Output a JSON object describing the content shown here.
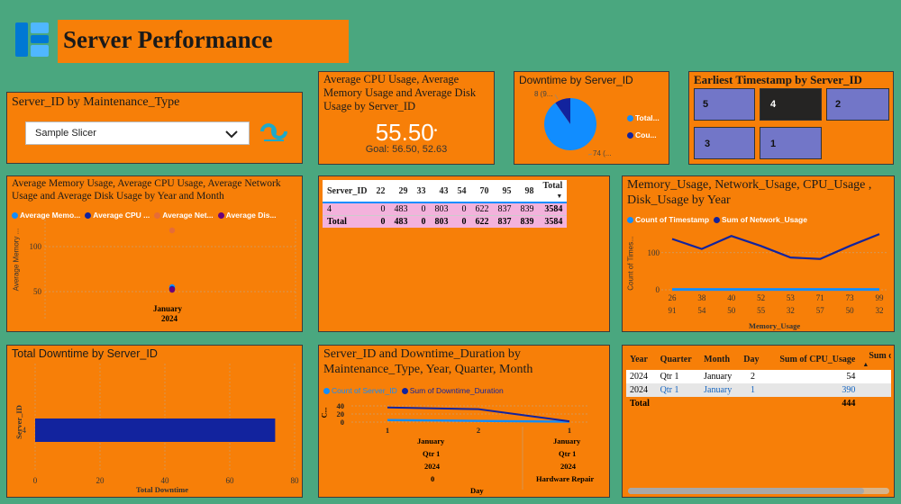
{
  "header": {
    "title": "Server Performance",
    "icon_name": "dashboard-grid-icon",
    "logo_name": "company-logo"
  },
  "slicer_panel": {
    "title": "Server_ID by Maintenance_Type",
    "dropdown_value": "Sample Slicer"
  },
  "kpi_card": {
    "title": "Average CPU Usage, Average Memory Usage and Average Disk Usage by Server_ID",
    "value": "55.50",
    "goal": "Goal: 56.50, 52.63"
  },
  "downtime_pie": {
    "title": "Downtime by Server_ID",
    "label_small": "8 (9...",
    "label_large": "74 (...",
    "legend": [
      "Total...",
      "Cou..."
    ],
    "colors": [
      "#118dff",
      "#12239e"
    ]
  },
  "earliest_ts": {
    "title": "Earliest Timestamp by Server_ID",
    "tiles": [
      "5",
      "4",
      "2",
      "3",
      "1"
    ]
  },
  "memory_cpu_chart": {
    "title": "Average Memory Usage, Average CPU Usage, Average Network Usage and Average Disk Usage by Year and Month",
    "legend": [
      "Average Memo...",
      "Average CPU ...",
      "Average Net...",
      "Average Dis..."
    ],
    "ylabel": "Average Memory ...",
    "xlabel_month": "January",
    "xlabel_year": "2024"
  },
  "matrix": {
    "headers": [
      "Server_ID",
      "22",
      "29",
      "33",
      "43",
      "54",
      "70",
      "95",
      "98",
      "Total"
    ],
    "rows": [
      [
        "4",
        "0",
        "483",
        "0",
        "803",
        "0",
        "622",
        "837",
        "839",
        "3584"
      ],
      [
        "Total",
        "0",
        "483",
        "0",
        "803",
        "0",
        "622",
        "837",
        "839",
        "3584"
      ]
    ]
  },
  "usage_by_year": {
    "title": "Memory_Usage, Network_Usage, CPU_Usage , Disk_Usage by Year",
    "legend": [
      "Count of Timestamp",
      "Sum of Network_Usage"
    ],
    "ylabel": "Count of Times...",
    "xlabel": "Memory_Usage",
    "xticks_top": [
      "26",
      "38",
      "40",
      "52",
      "53",
      "71",
      "73",
      "99"
    ],
    "xticks_bottom": [
      "91",
      "54",
      "50",
      "55",
      "32",
      "57",
      "50",
      "32"
    ]
  },
  "total_downtime": {
    "title": "Total Downtime by Server_ID",
    "ylabel": "Server_ID",
    "xlabel": "Total Downtime",
    "category": "4"
  },
  "downtime_duration": {
    "title": "Server_ID and Downtime_Duration by Maintenance_Type, Year, Quarter, Month",
    "legend": [
      "Count of Server_ID",
      "Sum of Downtime_Duration"
    ],
    "ylabel": "C...",
    "xlabel": "Day",
    "group_month": [
      "January",
      "January"
    ],
    "group_qtr": [
      "Qtr 1",
      "Qtr 1"
    ],
    "group_year": [
      "2024",
      "2024"
    ],
    "group_type": [
      "0",
      "Hardware Repair"
    ]
  },
  "table": {
    "headers": [
      "Year",
      "Quarter",
      "Month",
      "Day",
      "Sum of CPU_Usage",
      "Sum of Dis"
    ],
    "rows": [
      [
        "2024",
        "Qtr 1",
        "January",
        "2",
        "54"
      ],
      [
        "2024",
        "Qtr 1",
        "January",
        "1",
        "390"
      ]
    ],
    "total_label": "Total",
    "total_value": "444"
  },
  "chart_data": [
    {
      "type": "scatter",
      "title": "Average Memory Usage, Average CPU Usage, Average Network Usage and Average Disk Usage by Year and Month",
      "categories": [
        "January 2024"
      ],
      "series": [
        {
          "name": "Average Memo...",
          "values": [
            55
          ],
          "color": "#118dff"
        },
        {
          "name": "Average CPU ...",
          "values": [
            55
          ],
          "color": "#12239e"
        },
        {
          "name": "Average Net...",
          "values": [
            118
          ],
          "color": "#e66c37"
        },
        {
          "name": "Average Dis...",
          "values": [
            52
          ],
          "color": "#6b007b"
        }
      ],
      "yticks": [
        "50",
        "100"
      ],
      "ylim": [
        40,
        130
      ]
    },
    {
      "type": "pie",
      "title": "Downtime by Server_ID",
      "categories": [
        "Total...",
        "Cou..."
      ],
      "values": [
        74,
        8
      ]
    },
    {
      "type": "line",
      "title": "Memory_Usage, Network_Usage, CPU_Usage , Disk_Usage by Year",
      "x": [
        "26",
        "38",
        "40",
        "52",
        "53",
        "71",
        "73",
        "99"
      ],
      "series": [
        {
          "name": "Count of Timestamp",
          "values": [
            1,
            1,
            1,
            1,
            1,
            1,
            1,
            1
          ],
          "color": "#118dff"
        },
        {
          "name": "Sum of Network_Usage",
          "values": [
            137,
            110,
            145,
            118,
            87,
            83,
            118,
            150
          ],
          "color": "#12239e"
        }
      ],
      "yticks": [
        "0",
        "100"
      ],
      "ylim": [
        0,
        160
      ]
    },
    {
      "type": "bar",
      "title": "Total Downtime by Server_ID",
      "categories": [
        "4"
      ],
      "values": [
        74
      ],
      "xticks": [
        "0",
        "20",
        "40",
        "60",
        "80"
      ],
      "xlim": [
        0,
        80
      ]
    },
    {
      "type": "line",
      "title": "Server_ID and Downtime_Duration by Maintenance_Type, Year, Quarter, Month",
      "x": [
        "1",
        "2",
        "1"
      ],
      "series": [
        {
          "name": "Count of Server_ID",
          "values": [
            5,
            3,
            1
          ],
          "color": "#118dff"
        },
        {
          "name": "Sum of Downtime_Duration",
          "values": [
            36,
            32,
            2
          ],
          "color": "#12239e"
        }
      ],
      "yticks": [
        "0",
        "20",
        "40"
      ],
      "ylim": [
        0,
        40
      ]
    }
  ]
}
